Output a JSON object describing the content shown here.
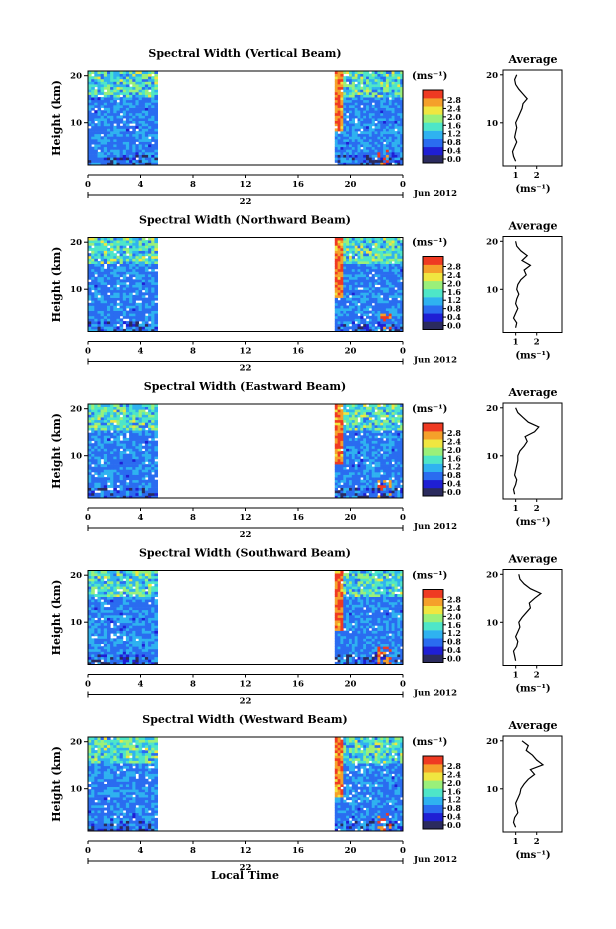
{
  "figure": {
    "x_axis_label": "Local Time",
    "y_axis_label": "Height (km)",
    "date_label": "Jun 2012",
    "day_label": "22",
    "unit_label": "(ms⁻¹)",
    "average_title": "Average",
    "colors": {
      "scale": [
        "#2b2b5e",
        "#1f1fd4",
        "#2a6cf0",
        "#2fb2f0",
        "#4ee6c8",
        "#9af07a",
        "#f0e640",
        "#f5a02a",
        "#ef3a22"
      ],
      "line": "#000000",
      "frame": "#000000"
    }
  },
  "chart_data": [
    {
      "type": "heatmap",
      "title": "Spectral Width (Vertical Beam)",
      "x": {
        "ticks": [
          "0",
          "4",
          "8",
          "12",
          "16",
          "20",
          "0"
        ],
        "range": [
          0,
          24
        ],
        "label": "Local Time"
      },
      "y": {
        "ticks": [
          "20",
          "10"
        ],
        "range": [
          1,
          21
        ],
        "label": "Height (km)"
      },
      "data_segments": [
        [
          0,
          5.3
        ],
        [
          18.8,
          24
        ]
      ],
      "colorbar": {
        "min": 0.0,
        "max": 2.8,
        "ticks": [
          "2.8",
          "2.4",
          "2.0",
          "1.6",
          "1.2",
          "0.8",
          "0.4",
          "0.0"
        ]
      },
      "average": {
        "x_ticks": [
          "1",
          "2"
        ],
        "x_range": [
          0.4,
          3.2
        ],
        "y_ticks": [
          "20",
          "10"
        ],
        "heights": [
          2,
          3,
          4,
          5,
          6,
          7,
          8,
          9,
          10,
          11,
          12,
          13,
          14,
          15,
          16,
          17,
          18,
          19,
          20
        ],
        "values": [
          1.0,
          0.9,
          0.85,
          0.95,
          1.05,
          0.95,
          1.0,
          1.05,
          1.0,
          1.1,
          1.2,
          1.3,
          1.35,
          1.55,
          1.35,
          1.15,
          1.0,
          0.95,
          1.05
        ]
      }
    },
    {
      "type": "heatmap",
      "title": "Spectral Width (Northward Beam)",
      "x": {
        "ticks": [
          "0",
          "4",
          "8",
          "12",
          "16",
          "20",
          "0"
        ],
        "range": [
          0,
          24
        ],
        "label": "Local Time"
      },
      "y": {
        "ticks": [
          "20",
          "10"
        ],
        "range": [
          1,
          21
        ],
        "label": "Height (km)"
      },
      "data_segments": [
        [
          0,
          5.3
        ],
        [
          18.8,
          24
        ]
      ],
      "colorbar": {
        "min": 0.0,
        "max": 2.8,
        "ticks": [
          "2.8",
          "2.4",
          "2.0",
          "1.6",
          "1.2",
          "0.8",
          "0.4",
          "0.0"
        ]
      },
      "average": {
        "x_ticks": [
          "1",
          "2"
        ],
        "x_range": [
          0.4,
          3.2
        ],
        "y_ticks": [
          "20",
          "10"
        ],
        "heights": [
          2,
          3,
          4,
          5,
          6,
          7,
          8,
          9,
          10,
          11,
          12,
          13,
          14,
          15,
          16,
          17,
          18,
          19,
          20
        ],
        "values": [
          1.0,
          1.05,
          0.9,
          1.0,
          1.1,
          1.0,
          1.05,
          1.15,
          1.05,
          1.1,
          1.25,
          1.5,
          1.4,
          1.7,
          1.3,
          1.55,
          1.25,
          1.05,
          1.0
        ]
      }
    },
    {
      "type": "heatmap",
      "title": "Spectral Width (Eastward Beam)",
      "x": {
        "ticks": [
          "0",
          "4",
          "8",
          "12",
          "16",
          "20",
          "0"
        ],
        "range": [
          0,
          24
        ],
        "label": "Local Time"
      },
      "y": {
        "ticks": [
          "20",
          "10"
        ],
        "range": [
          1,
          21
        ],
        "label": "Height (km)"
      },
      "data_segments": [
        [
          0,
          5.3
        ],
        [
          18.8,
          24
        ]
      ],
      "colorbar": {
        "min": 0.0,
        "max": 2.8,
        "ticks": [
          "2.8",
          "2.4",
          "2.0",
          "1.6",
          "1.2",
          "0.8",
          "0.4",
          "0.0"
        ]
      },
      "average": {
        "x_ticks": [
          "1",
          "2"
        ],
        "x_range": [
          0.4,
          3.2
        ],
        "y_ticks": [
          "20",
          "10"
        ],
        "heights": [
          2,
          3,
          4,
          5,
          6,
          7,
          8,
          9,
          10,
          11,
          12,
          13,
          14,
          15,
          16,
          17,
          18,
          19,
          20
        ],
        "values": [
          0.95,
          0.9,
          1.0,
          1.05,
          0.95,
          1.0,
          1.05,
          1.1,
          1.1,
          1.2,
          1.4,
          1.55,
          1.45,
          1.9,
          2.1,
          1.6,
          1.35,
          1.1,
          1.0
        ]
      }
    },
    {
      "type": "heatmap",
      "title": "Spectral Width (Southward Beam)",
      "x": {
        "ticks": [
          "0",
          "4",
          "8",
          "12",
          "16",
          "20",
          "0"
        ],
        "range": [
          0,
          24
        ],
        "label": "Local Time"
      },
      "y": {
        "ticks": [
          "20",
          "10"
        ],
        "range": [
          1,
          21
        ],
        "label": "Height (km)"
      },
      "data_segments": [
        [
          0,
          5.3
        ],
        [
          18.8,
          24
        ]
      ],
      "colorbar": {
        "min": 0.0,
        "max": 2.8,
        "ticks": [
          "2.8",
          "2.4",
          "2.0",
          "1.6",
          "1.2",
          "0.8",
          "0.4",
          "0.0"
        ]
      },
      "average": {
        "x_ticks": [
          "1",
          "2"
        ],
        "x_range": [
          0.4,
          3.2
        ],
        "y_ticks": [
          "20",
          "10"
        ],
        "heights": [
          2,
          3,
          4,
          5,
          6,
          7,
          8,
          9,
          10,
          11,
          12,
          13,
          14,
          15,
          16,
          17,
          18,
          19,
          20
        ],
        "values": [
          1.0,
          0.95,
          0.9,
          1.05,
          1.1,
          1.0,
          1.1,
          1.2,
          1.15,
          1.3,
          1.5,
          1.7,
          1.65,
          1.9,
          2.2,
          1.7,
          1.4,
          1.2,
          1.15
        ]
      }
    },
    {
      "type": "heatmap",
      "title": "Spectral Width (Westward Beam)",
      "x": {
        "ticks": [
          "0",
          "4",
          "8",
          "12",
          "16",
          "20",
          "0"
        ],
        "range": [
          0,
          24
        ],
        "label": "Local Time"
      },
      "y": {
        "ticks": [
          "20",
          "10"
        ],
        "range": [
          1,
          21
        ],
        "label": "Height (km)"
      },
      "data_segments": [
        [
          0,
          5.3
        ],
        [
          18.8,
          24
        ]
      ],
      "colorbar": {
        "min": 0.0,
        "max": 2.8,
        "ticks": [
          "2.8",
          "2.4",
          "2.0",
          "1.6",
          "1.2",
          "0.8",
          "0.4",
          "0.0"
        ]
      },
      "average": {
        "x_ticks": [
          "1",
          "2"
        ],
        "x_range": [
          0.4,
          3.2
        ],
        "y_ticks": [
          "20",
          "10"
        ],
        "heights": [
          2,
          3,
          4,
          5,
          6,
          7,
          8,
          9,
          10,
          11,
          12,
          13,
          14,
          15,
          16,
          17,
          18,
          19,
          20
        ],
        "values": [
          1.0,
          0.9,
          0.95,
          1.1,
          1.05,
          1.0,
          1.1,
          1.2,
          1.25,
          1.4,
          1.6,
          1.9,
          1.7,
          2.3,
          2.0,
          1.8,
          1.5,
          1.6,
          1.3
        ]
      }
    }
  ]
}
